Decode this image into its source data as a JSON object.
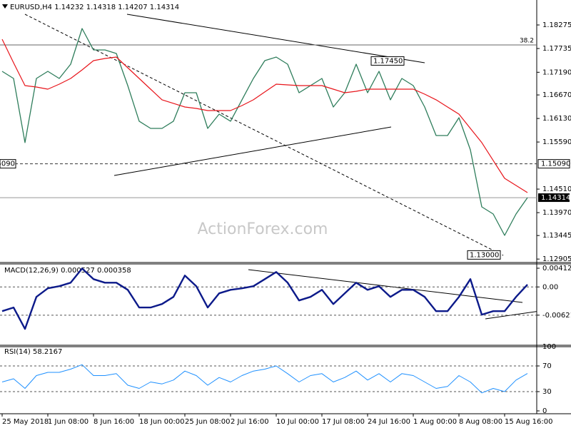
{
  "chart_data": [
    {
      "type": "line",
      "title": "EURUSD,H4 1.14232 1.14318 1.14207 1.14314",
      "watermark": "ActionForex.com",
      "categories": [
        "25 May 2018",
        null,
        null,
        null,
        "1 Jun 08:00",
        null,
        null,
        null,
        "8 Jun 16:00",
        null,
        null,
        null,
        "18 Jun 00:00",
        null,
        null,
        null,
        "25 Jun 08:00",
        null,
        null,
        null,
        "2 Jul 16:00",
        null,
        null,
        null,
        "10 Jul 00:00",
        null,
        null,
        null,
        "17 Jul 08:00",
        null,
        null,
        null,
        "24 Jul 16:00",
        null,
        null,
        null,
        "1 Aug 00:00",
        null,
        null,
        null,
        "8 Aug 08:00",
        null,
        null,
        null,
        "15 Aug 16:00",
        null,
        null
      ],
      "series": [
        {
          "color": "#2e7d5b",
          "width": 1.3,
          "values": [
            1.17212,
            1.17048,
            1.15576,
            1.17048,
            1.17212,
            1.17048,
            1.17375,
            1.18193,
            1.17703,
            1.17703,
            1.17621,
            1.16885,
            1.16067,
            1.15903,
            1.15903,
            1.16067,
            1.16721,
            1.16721,
            1.15903,
            1.1623,
            1.16067,
            1.16558,
            1.17048,
            1.17457,
            1.17539,
            1.17375,
            1.16721,
            1.16885,
            1.17048,
            1.16394,
            1.16721,
            1.17375,
            1.16721,
            1.17212,
            1.16558,
            1.17048,
            1.16885,
            1.16394,
            1.15739,
            1.15739,
            1.16148,
            1.15412,
            1.14103,
            1.13939,
            1.13448,
            1.13939,
            1.14314
          ]
        },
        {
          "color": "#e8151b",
          "width": 1.2,
          "values": [
            1.17948,
            1.17408,
            1.16885,
            1.16852,
            1.16803,
            1.16917,
            1.17048,
            1.17244,
            1.17457,
            1.17506,
            1.17539,
            1.17293,
            1.17048,
            1.16803,
            1.16558,
            1.16476,
            1.16394,
            1.16361,
            1.16312,
            1.16312,
            1.16312,
            1.16426,
            1.16558,
            1.16738,
            1.16917,
            1.16901,
            1.16885,
            1.16885,
            1.16885,
            1.16803,
            1.16721,
            1.16754,
            1.16803,
            1.16803,
            1.16803,
            1.16803,
            1.16803,
            1.16688,
            1.16558,
            1.16394,
            1.1623,
            1.15903,
            1.15576,
            1.15167,
            1.14757,
            1.14594,
            1.1443
          ]
        }
      ],
      "ylim": [
        1.12826,
        1.18766
      ],
      "yticks": [
        1.18275,
        1.17735,
        {
          "value": 1.1719,
          "label": "1.17190"
        },
        {
          "value": 1.1667,
          "label": "1.16670"
        },
        {
          "value": 1.1613,
          "label": "1.16130"
        },
        {
          "value": 1.1559,
          "label": "1.15590"
        },
        {
          "value": 1.1451,
          "label": "1.14510"
        },
        {
          "value": 1.1397,
          "label": "1.13970"
        },
        1.13445,
        1.12905
      ],
      "hlines": [
        {
          "value": 1.17817,
          "label": "38.2",
          "style": "fib"
        },
        {
          "value": 1.1509,
          "label": "1.15090",
          "style": "dashed"
        },
        {
          "value": 1.14314,
          "label": "1.14314",
          "style": "current"
        }
      ],
      "annotations": [
        {
          "value": 1.1745,
          "label": "1.17450"
        },
        {
          "value": 1.13,
          "label": "1.13000"
        }
      ]
    },
    {
      "type": "line",
      "title": "MACD(12,26,9) 0.000527 0.000358",
      "series": [
        {
          "color": "#0c1a8a",
          "width": 2.4,
          "values": [
            -0.00533,
            -0.00454,
            -0.00925,
            -0.00219,
            -0.00031,
            0.00016,
            0.00094,
            0.00407,
            0.00172,
            0.00094,
            0.00094,
            -0.00063,
            -0.00454,
            -0.00454,
            -0.00376,
            -0.00219,
            0.00251,
            0.00016,
            -0.00454,
            -0.00141,
            -0.00063,
            -0.00031,
            0.00016,
            0.00172,
            0.00329,
            0.00094,
            -0.00298,
            -0.00219,
            -0.00063,
            -0.00376,
            -0.00141,
            0.00094,
            -0.00063,
            0.00016,
            -0.00219,
            -0.00063,
            -0.00063,
            -0.00219,
            -0.00533,
            -0.00533,
            -0.00219,
            0.00172,
            -0.00611,
            -0.00533,
            -0.00533,
            -0.00219,
            0.000527
          ]
        }
      ],
      "ylim": [
        -0.01316,
        0.004125
      ],
      "yticks": [
        0.004125,
        {
          "value": 0,
          "label": "0.00"
        },
        -0.006218
      ]
    },
    {
      "type": "line",
      "title": "RSI(14) 58.2167",
      "series": [
        {
          "color": "#1e90ff",
          "width": 1,
          "values": [
            45,
            50,
            35,
            55,
            60,
            60,
            65,
            72,
            55,
            55,
            58,
            40,
            35,
            45,
            42,
            48,
            62,
            55,
            40,
            52,
            45,
            55,
            62,
            65,
            70,
            58,
            45,
            55,
            58,
            45,
            52,
            62,
            48,
            58,
            45,
            58,
            55,
            45,
            35,
            38,
            55,
            45,
            28,
            35,
            30,
            48,
            58.2167
          ]
        }
      ],
      "ylim": [
        0,
        100
      ],
      "yticks": [
        100,
        70,
        30,
        0
      ]
    }
  ]
}
